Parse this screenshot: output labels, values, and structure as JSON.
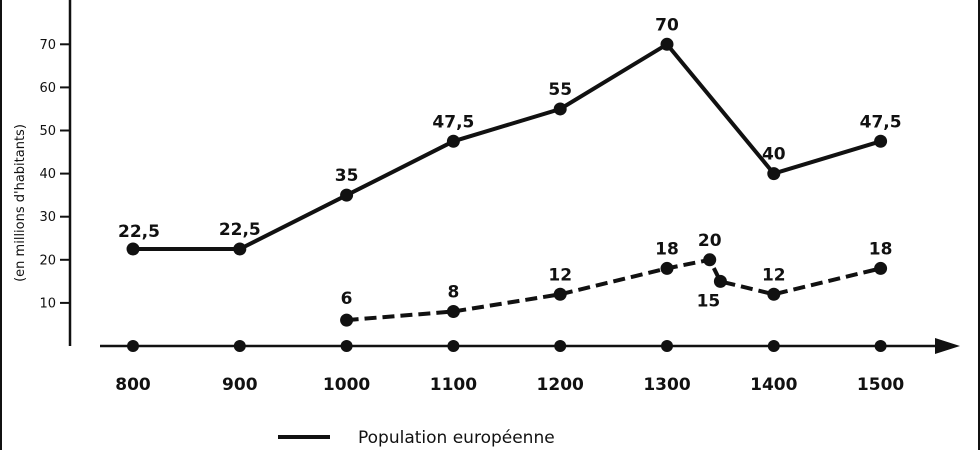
{
  "chart_data": {
    "type": "line",
    "ylabel": "(en millions d'habitants)",
    "ylim": [
      0,
      80
    ],
    "yticks": [
      10,
      20,
      30,
      40,
      50,
      60,
      70
    ],
    "categories": [
      "800",
      "900",
      "1000",
      "1100",
      "1200",
      "1300",
      "1400",
      "1500"
    ],
    "series": [
      {
        "name": "Population européenne",
        "style": "solid",
        "x": [
          800,
          900,
          1000,
          1100,
          1200,
          1300,
          1400,
          1500
        ],
        "values": [
          22.5,
          22.5,
          35,
          47.5,
          55,
          70,
          40,
          47.5
        ],
        "labels": [
          "22,5",
          "22,5",
          "35",
          "47,5",
          "55",
          "70",
          "40",
          "47,5"
        ]
      },
      {
        "style": "dashed",
        "x": [
          1000,
          1100,
          1200,
          1300,
          1340,
          1350,
          1400,
          1500
        ],
        "values": [
          6,
          8,
          12,
          18,
          20,
          15,
          12,
          18
        ],
        "labels": [
          "6",
          "8",
          "12",
          "18",
          "20",
          "15",
          "12",
          "18"
        ]
      }
    ],
    "grid": false,
    "legend": "bottom",
    "colors": {
      "line": "#111111"
    }
  }
}
